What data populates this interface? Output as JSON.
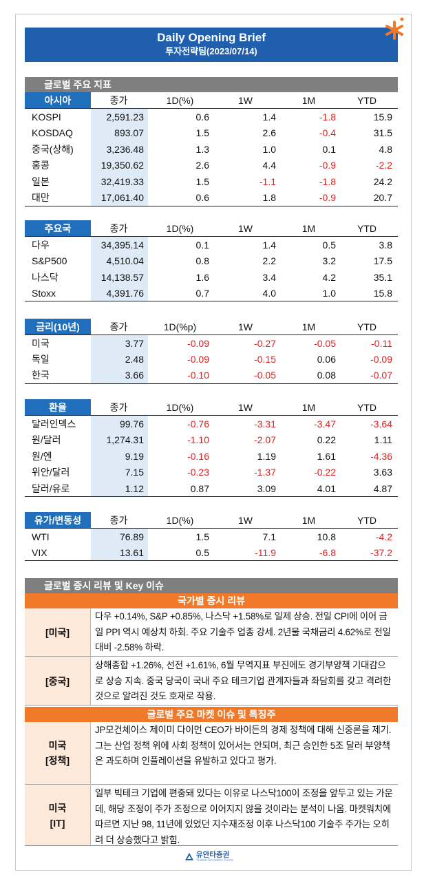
{
  "header": {
    "title": "Daily Opening Brief",
    "subtitle": "투자전략팀(2023/07/14)"
  },
  "sections": {
    "indicators": "글로벌 주요 지표",
    "review": "글로벌 증시 리뷰 및 Key 이슈"
  },
  "tables": {
    "asia": {
      "tag": "아시아",
      "headers": [
        "종가",
        "1D(%)",
        "1W",
        "1M",
        "YTD"
      ],
      "rows": [
        {
          "name": "KOSPI",
          "close": "2,591.23",
          "d1": "0.6",
          "w1": "1.4",
          "m1": "-1.8",
          "ytd": "15.9"
        },
        {
          "name": "KOSDAQ",
          "close": "893.07",
          "d1": "1.5",
          "w1": "2.6",
          "m1": "-0.4",
          "ytd": "31.5"
        },
        {
          "name": "중국(상해)",
          "close": "3,236.48",
          "d1": "1.3",
          "w1": "1.0",
          "m1": "0.1",
          "ytd": "4.8"
        },
        {
          "name": "홍콩",
          "close": "19,350.62",
          "d1": "2.6",
          "w1": "4.4",
          "m1": "-0.9",
          "ytd": "-2.2"
        },
        {
          "name": "일본",
          "close": "32,419.33",
          "d1": "1.5",
          "w1": "-1.1",
          "m1": "-1.8",
          "ytd": "24.2"
        },
        {
          "name": "대만",
          "close": "17,061.40",
          "d1": "0.6",
          "w1": "1.8",
          "m1": "-0.9",
          "ytd": "20.7"
        }
      ]
    },
    "major": {
      "tag": "주요국",
      "headers": [
        "종가",
        "1D(%)",
        "1W",
        "1M",
        "YTD"
      ],
      "rows": [
        {
          "name": "다우",
          "close": "34,395.14",
          "d1": "0.1",
          "w1": "1.4",
          "m1": "0.5",
          "ytd": "3.8"
        },
        {
          "name": "S&P500",
          "close": "4,510.04",
          "d1": "0.8",
          "w1": "2.2",
          "m1": "3.2",
          "ytd": "17.5"
        },
        {
          "name": "나스닥",
          "close": "14,138.57",
          "d1": "1.6",
          "w1": "3.4",
          "m1": "4.2",
          "ytd": "35.1"
        },
        {
          "name": "Stoxx",
          "close": "4,391.76",
          "d1": "0.7",
          "w1": "4.0",
          "m1": "1.0",
          "ytd": "15.8"
        }
      ]
    },
    "rates": {
      "tag": "금리(10년)",
      "headers": [
        "종가",
        "1D(%p)",
        "1W",
        "1M",
        "YTD"
      ],
      "rows": [
        {
          "name": "미국",
          "close": "3.77",
          "d1": "-0.09",
          "w1": "-0.27",
          "m1": "-0.05",
          "ytd": "-0.11"
        },
        {
          "name": "독일",
          "close": "2.48",
          "d1": "-0.09",
          "w1": "-0.15",
          "m1": "0.06",
          "ytd": "-0.09"
        },
        {
          "name": "한국",
          "close": "3.66",
          "d1": "-0.10",
          "w1": "-0.05",
          "m1": "0.08",
          "ytd": "-0.07"
        }
      ]
    },
    "fx": {
      "tag": "환율",
      "headers": [
        "종가",
        "1D(%)",
        "1W",
        "1M",
        "YTD"
      ],
      "rows": [
        {
          "name": "달러인덱스",
          "close": "99.76",
          "d1": "-0.76",
          "w1": "-3.31",
          "m1": "-3.47",
          "ytd": "-3.64"
        },
        {
          "name": "원/달러",
          "close": "1,274.31",
          "d1": "-1.10",
          "w1": "-2.07",
          "m1": "0.22",
          "ytd": "1.11"
        },
        {
          "name": "원/엔",
          "close": "9.19",
          "d1": "-0.16",
          "w1": "1.19",
          "m1": "1.61",
          "ytd": "-4.36"
        },
        {
          "name": "위안/달러",
          "close": "7.15",
          "d1": "-0.23",
          "w1": "-1.37",
          "m1": "-0.22",
          "ytd": "3.63"
        },
        {
          "name": "달러/유로",
          "close": "1.12",
          "d1": "0.87",
          "w1": "3.09",
          "m1": "4.01",
          "ytd": "4.87"
        }
      ]
    },
    "oil": {
      "tag": "유가/변동성",
      "headers": [
        "종가",
        "1D(%)",
        "1W",
        "1M",
        "YTD"
      ],
      "rows": [
        {
          "name": "WTI",
          "close": "76.89",
          "d1": "1.5",
          "w1": "7.1",
          "m1": "10.8",
          "ytd": "-4.2"
        },
        {
          "name": "VIX",
          "close": "13.61",
          "d1": "0.5",
          "w1": "-11.9",
          "m1": "-6.8",
          "ytd": "-37.2"
        }
      ]
    }
  },
  "review": {
    "country_title": "국가별 증시 리뷰",
    "items": [
      {
        "key": "[미국]",
        "text": "다우 +0.14%, S&P +0.85%, 나스닥 +1.58%로 일제 상승. 전일 CPI에 이어 금일 PPI 역시 예상치 하회. 주요 기술주 업종 강세. 2년물 국채금리 4.62%로 전일 대비 -2.58% 하락."
      },
      {
        "key": "[중국]",
        "text": "상해종합 +1.26%, 선전 +1.61%, 6월 무역지표 부진에도 경기부양책 기대감으로 상승 지속. 중국 당국이 국내 주요 테크기업 관계자들과 좌담회를 갖고 격려한 것으로 알려진 것도 호재로 작용."
      }
    ],
    "issues_title": "글로벌 주요 마켓 이슈 및 특징주",
    "issues": [
      {
        "key1": "미국",
        "key2": "[정책]",
        "text": "JP모건체이스 제이미 다이먼 CEO가 바이든의 경제 정책에 대해 신중론을 제기. 그는 산업 정책 위에 사회 정책이 있어서는 안되며, 최근 승인한 5조 달러 부양책은 과도하며 인플레이션을 유발하고 있다고 평가."
      },
      {
        "key1": "미국",
        "key2": "[IT]",
        "text": "일부 빅테크 기업에 편중돼 있다는 이유로 나스닥100이 조정을 앞두고 있는 가운데, 해당 조정이 주가 조정으로 이어지지 않을 것이라는 분석이 나옴. 마켓워치에 따르면 지난 98, 11년에 있었던 지수재조정 이후 나스닥100 기술주 주가는 오히려 더 상승했다고 밝힘."
      }
    ]
  },
  "footer": {
    "logo_text": "유안타증권",
    "logo_sub": "Yuanta Securities Korea"
  },
  "colors": {
    "brand_blue": "#1f5fae",
    "tag_blue": "#1f6fbd",
    "orange": "#f07a2a",
    "negative": "#e02020",
    "close_bg": "#deebf7"
  }
}
